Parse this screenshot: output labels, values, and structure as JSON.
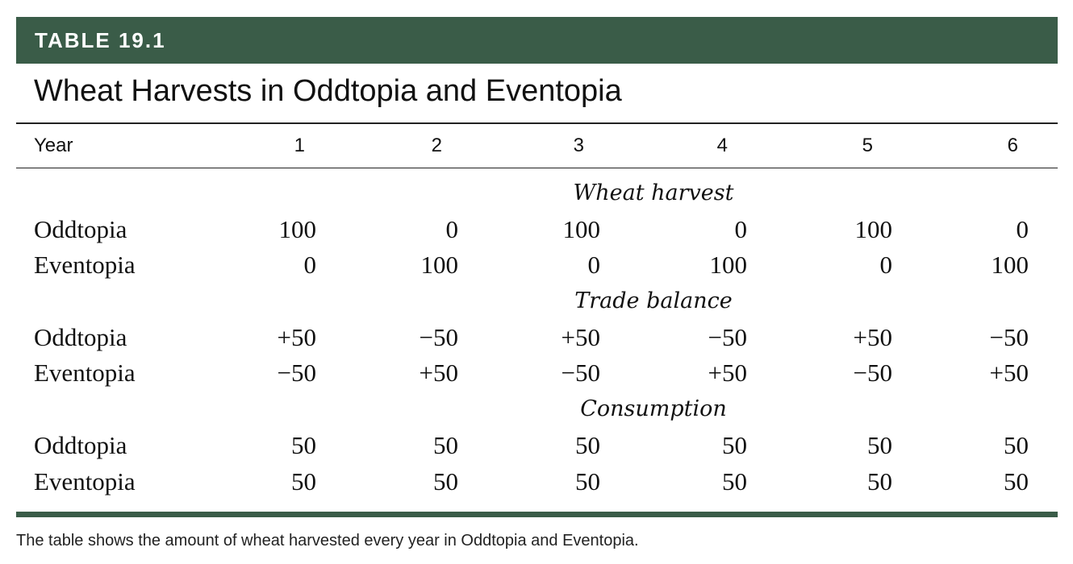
{
  "table_label": "TABLE 19.1",
  "title": "Wheat Harvests in Oddtopia and Eventopia",
  "header": {
    "first": "Year",
    "years": [
      "1",
      "2",
      "3",
      "4",
      "5",
      "6"
    ]
  },
  "sections": [
    {
      "label": "Wheat harvest",
      "rows": [
        {
          "country": "Oddtopia",
          "values": [
            "100",
            "0",
            "100",
            "0",
            "100",
            "0"
          ]
        },
        {
          "country": "Eventopia",
          "values": [
            "0",
            "100",
            "0",
            "100",
            "0",
            "100"
          ]
        }
      ]
    },
    {
      "label": "Trade balance",
      "rows": [
        {
          "country": "Oddtopia",
          "values": [
            "+50",
            "−50",
            "+50",
            "−50",
            "+50",
            "−50"
          ]
        },
        {
          "country": "Eventopia",
          "values": [
            "−50",
            "+50",
            "−50",
            "+50",
            "−50",
            "+50"
          ]
        }
      ]
    },
    {
      "label": "Consumption",
      "rows": [
        {
          "country": "Oddtopia",
          "values": [
            "50",
            "50",
            "50",
            "50",
            "50",
            "50"
          ]
        },
        {
          "country": "Eventopia",
          "values": [
            "50",
            "50",
            "50",
            "50",
            "50",
            "50"
          ]
        }
      ]
    }
  ],
  "caption": "The table shows the amount of wheat harvested every year in Oddtopia and Eventopia.",
  "colors": {
    "accent": "#3a5c48",
    "text": "#111111"
  }
}
